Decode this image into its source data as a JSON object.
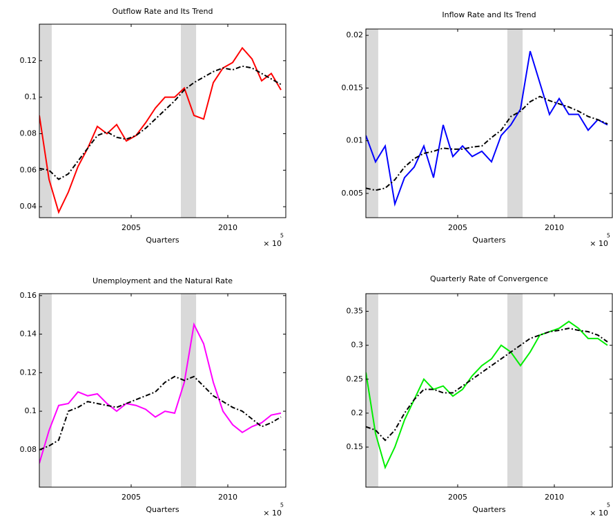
{
  "chart_data": [
    {
      "type": "line",
      "title": "Outflow Rate and Its Trend",
      "xlabel": "Quarters",
      "x_multiplier": "× 10",
      "x_multiplier_exponent": "5",
      "x": [
        2000.25,
        2000.75,
        2001.25,
        2001.75,
        2002.25,
        2002.75,
        2003.25,
        2003.75,
        2004.25,
        2004.75,
        2005.25,
        2005.75,
        2006.25,
        2006.75,
        2007.25,
        2007.75,
        2008.25,
        2008.75,
        2009.25,
        2009.75,
        2010.25,
        2010.75,
        2011.25,
        2011.75,
        2012.25,
        2012.75
      ],
      "xlim": [
        2000.25,
        2013.0
      ],
      "xticks": [
        2005,
        2010
      ],
      "ylim": [
        0.034,
        0.14
      ],
      "yticks": [
        0.04,
        0.06,
        0.08,
        0.1,
        0.12
      ],
      "shaded_regions": [
        [
          2000.25,
          2000.89
        ],
        [
          2007.57,
          2008.36
        ]
      ],
      "shade_color": "#d9d9d9",
      "series": [
        {
          "color": "#ff0000",
          "style": "solid",
          "values": [
            0.09,
            0.055,
            0.037,
            0.048,
            0.062,
            0.072,
            0.084,
            0.08,
            0.085,
            0.076,
            0.079,
            0.086,
            0.094,
            0.1,
            0.1,
            0.105,
            0.09,
            0.088,
            0.108,
            0.116,
            0.119,
            0.127,
            0.121,
            0.109,
            0.113,
            0.104
          ]
        },
        {
          "color": "#000000",
          "style": "dash-dot",
          "values": [
            0.061,
            0.06,
            0.055,
            0.058,
            0.065,
            0.072,
            0.079,
            0.081,
            0.078,
            0.077,
            0.079,
            0.083,
            0.088,
            0.093,
            0.098,
            0.104,
            0.108,
            0.111,
            0.114,
            0.116,
            0.115,
            0.117,
            0.116,
            0.113,
            0.11,
            0.107
          ]
        }
      ]
    },
    {
      "type": "line",
      "title": "Inflow Rate and Its Trend",
      "xlabel": "Quarters",
      "x_multiplier": "× 10",
      "x_multiplier_exponent": "5",
      "x": [
        2000.25,
        2000.75,
        2001.25,
        2001.75,
        2002.25,
        2002.75,
        2003.25,
        2003.75,
        2004.25,
        2004.75,
        2005.25,
        2005.75,
        2006.25,
        2006.75,
        2007.25,
        2007.75,
        2008.25,
        2008.75,
        2009.25,
        2009.75,
        2010.25,
        2010.75,
        2011.25,
        2011.75,
        2012.25,
        2012.75
      ],
      "xlim": [
        2000.25,
        2013.0
      ],
      "xticks": [
        2005,
        2010
      ],
      "ylim": [
        0.0027,
        0.0206
      ],
      "yticks": [
        0.005,
        0.01,
        0.015,
        0.02
      ],
      "shaded_regions": [
        [
          2000.25,
          2000.89
        ],
        [
          2007.57,
          2008.36
        ]
      ],
      "shade_color": "#d9d9d9",
      "series": [
        {
          "color": "#0000ff",
          "style": "solid",
          "values": [
            0.0105,
            0.008,
            0.0095,
            0.004,
            0.0065,
            0.0075,
            0.0095,
            0.0065,
            0.0115,
            0.0085,
            0.0095,
            0.0085,
            0.009,
            0.008,
            0.0105,
            0.0115,
            0.013,
            0.0185,
            0.0155,
            0.0125,
            0.014,
            0.0125,
            0.0125,
            0.011,
            0.012,
            0.0115
          ]
        },
        {
          "color": "#000000",
          "style": "dash-dot",
          "values": [
            0.0055,
            0.0053,
            0.0055,
            0.0063,
            0.0075,
            0.0083,
            0.0088,
            0.009,
            0.0093,
            0.0092,
            0.0092,
            0.0094,
            0.0095,
            0.0103,
            0.011,
            0.0123,
            0.0128,
            0.0137,
            0.0142,
            0.0138,
            0.0135,
            0.0132,
            0.0128,
            0.0123,
            0.012,
            0.0116
          ]
        }
      ]
    },
    {
      "type": "line",
      "title": "Unemployment and the Natural Rate",
      "xlabel": "Quarters",
      "x_multiplier": "× 10",
      "x_multiplier_exponent": "5",
      "x": [
        2000.25,
        2000.75,
        2001.25,
        2001.75,
        2002.25,
        2002.75,
        2003.25,
        2003.75,
        2004.25,
        2004.75,
        2005.25,
        2005.75,
        2006.25,
        2006.75,
        2007.25,
        2007.75,
        2008.25,
        2008.75,
        2009.25,
        2009.75,
        2010.25,
        2010.75,
        2011.25,
        2011.75,
        2012.25,
        2012.75
      ],
      "xlim": [
        2000.25,
        2013.0
      ],
      "xticks": [
        2005,
        2010
      ],
      "ylim": [
        0.0606,
        0.161
      ],
      "yticks": [
        0.08,
        0.1,
        0.12,
        0.14,
        0.16
      ],
      "shaded_regions": [
        [
          2000.25,
          2000.89
        ],
        [
          2007.57,
          2008.36
        ]
      ],
      "shade_color": "#d9d9d9",
      "series": [
        {
          "color": "#ff00ff",
          "style": "solid",
          "values": [
            0.073,
            0.09,
            0.103,
            0.104,
            0.11,
            0.108,
            0.109,
            0.104,
            0.1,
            0.104,
            0.103,
            0.101,
            0.097,
            0.1,
            0.099,
            0.115,
            0.145,
            0.135,
            0.115,
            0.1,
            0.093,
            0.089,
            0.092,
            0.094,
            0.098,
            0.099
          ]
        },
        {
          "color": "#000000",
          "style": "dash-dot",
          "values": [
            0.08,
            0.082,
            0.085,
            0.1,
            0.102,
            0.105,
            0.104,
            0.103,
            0.102,
            0.104,
            0.106,
            0.108,
            0.11,
            0.115,
            0.118,
            0.116,
            0.118,
            0.113,
            0.108,
            0.105,
            0.102,
            0.1,
            0.096,
            0.092,
            0.094,
            0.097
          ]
        }
      ]
    },
    {
      "type": "line",
      "title": "Quarterly Rate of Convergence",
      "xlabel": "Quarters",
      "x_multiplier": "× 10",
      "x_multiplier_exponent": "5",
      "x": [
        2000.25,
        2000.75,
        2001.25,
        2001.75,
        2002.25,
        2002.75,
        2003.25,
        2003.75,
        2004.25,
        2004.75,
        2005.25,
        2005.75,
        2006.25,
        2006.75,
        2007.25,
        2007.75,
        2008.25,
        2008.75,
        2009.25,
        2009.75,
        2010.25,
        2010.75,
        2011.25,
        2011.75,
        2012.25,
        2012.75
      ],
      "xlim": [
        2000.25,
        2013.0
      ],
      "xticks": [
        2005,
        2010
      ],
      "ylim": [
        0.091,
        0.376
      ],
      "yticks": [
        0.15,
        0.2,
        0.25,
        0.3,
        0.35
      ],
      "shaded_regions": [
        [
          2000.25,
          2000.89
        ],
        [
          2007.57,
          2008.36
        ]
      ],
      "shade_color": "#d9d9d9",
      "series": [
        {
          "color": "#00ee00",
          "style": "solid",
          "values": [
            0.26,
            0.17,
            0.12,
            0.15,
            0.19,
            0.22,
            0.25,
            0.235,
            0.24,
            0.225,
            0.235,
            0.255,
            0.27,
            0.28,
            0.3,
            0.29,
            0.27,
            0.29,
            0.315,
            0.32,
            0.325,
            0.335,
            0.325,
            0.31,
            0.31,
            0.3
          ]
        },
        {
          "color": "#000000",
          "style": "dash-dot",
          "values": [
            0.18,
            0.175,
            0.16,
            0.175,
            0.2,
            0.22,
            0.235,
            0.235,
            0.23,
            0.23,
            0.24,
            0.25,
            0.26,
            0.27,
            0.28,
            0.29,
            0.3,
            0.31,
            0.315,
            0.32,
            0.322,
            0.325,
            0.322,
            0.32,
            0.315,
            0.305
          ]
        }
      ]
    }
  ]
}
